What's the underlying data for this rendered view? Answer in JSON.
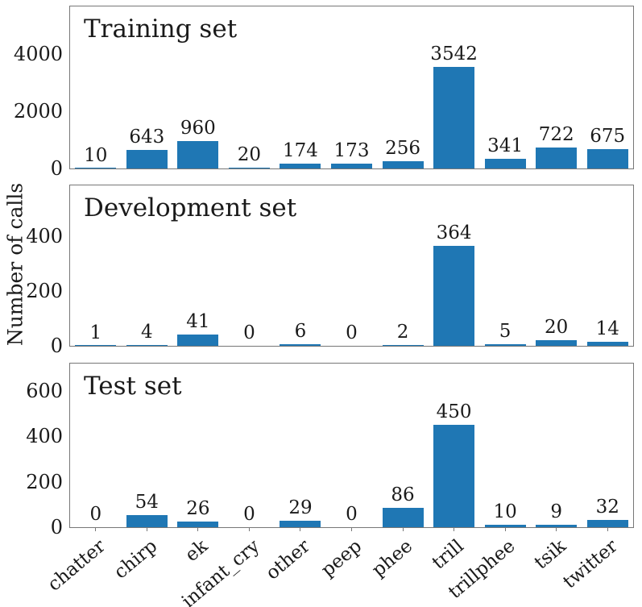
{
  "chart_data": {
    "type": "bar",
    "ylabel": "Number of calls",
    "bar_color": "#1f77b4",
    "text_color": "#1a1a1a",
    "spine_color": "#777777",
    "grid": false,
    "categories": [
      "chatter",
      "chirp",
      "ek",
      "infant_cry",
      "other",
      "peep",
      "phee",
      "trill",
      "trillphee",
      "tsik",
      "twitter"
    ],
    "panels": [
      {
        "title": "Training set",
        "values": [
          10,
          643,
          960,
          20,
          174,
          173,
          256,
          3542,
          341,
          722,
          675
        ],
        "yticks": [
          0,
          2000,
          4000
        ],
        "ylim": [
          0,
          5660
        ]
      },
      {
        "title": "Development set",
        "values": [
          1,
          4,
          41,
          0,
          6,
          0,
          2,
          364,
          5,
          20,
          14
        ],
        "yticks": [
          0,
          200,
          400
        ],
        "ylim": [
          0,
          585
        ]
      },
      {
        "title": "Test set",
        "values": [
          0,
          54,
          26,
          0,
          29,
          0,
          86,
          450,
          10,
          9,
          32
        ],
        "yticks": [
          0,
          200,
          400,
          600
        ],
        "ylim": [
          0,
          719
        ]
      }
    ]
  }
}
